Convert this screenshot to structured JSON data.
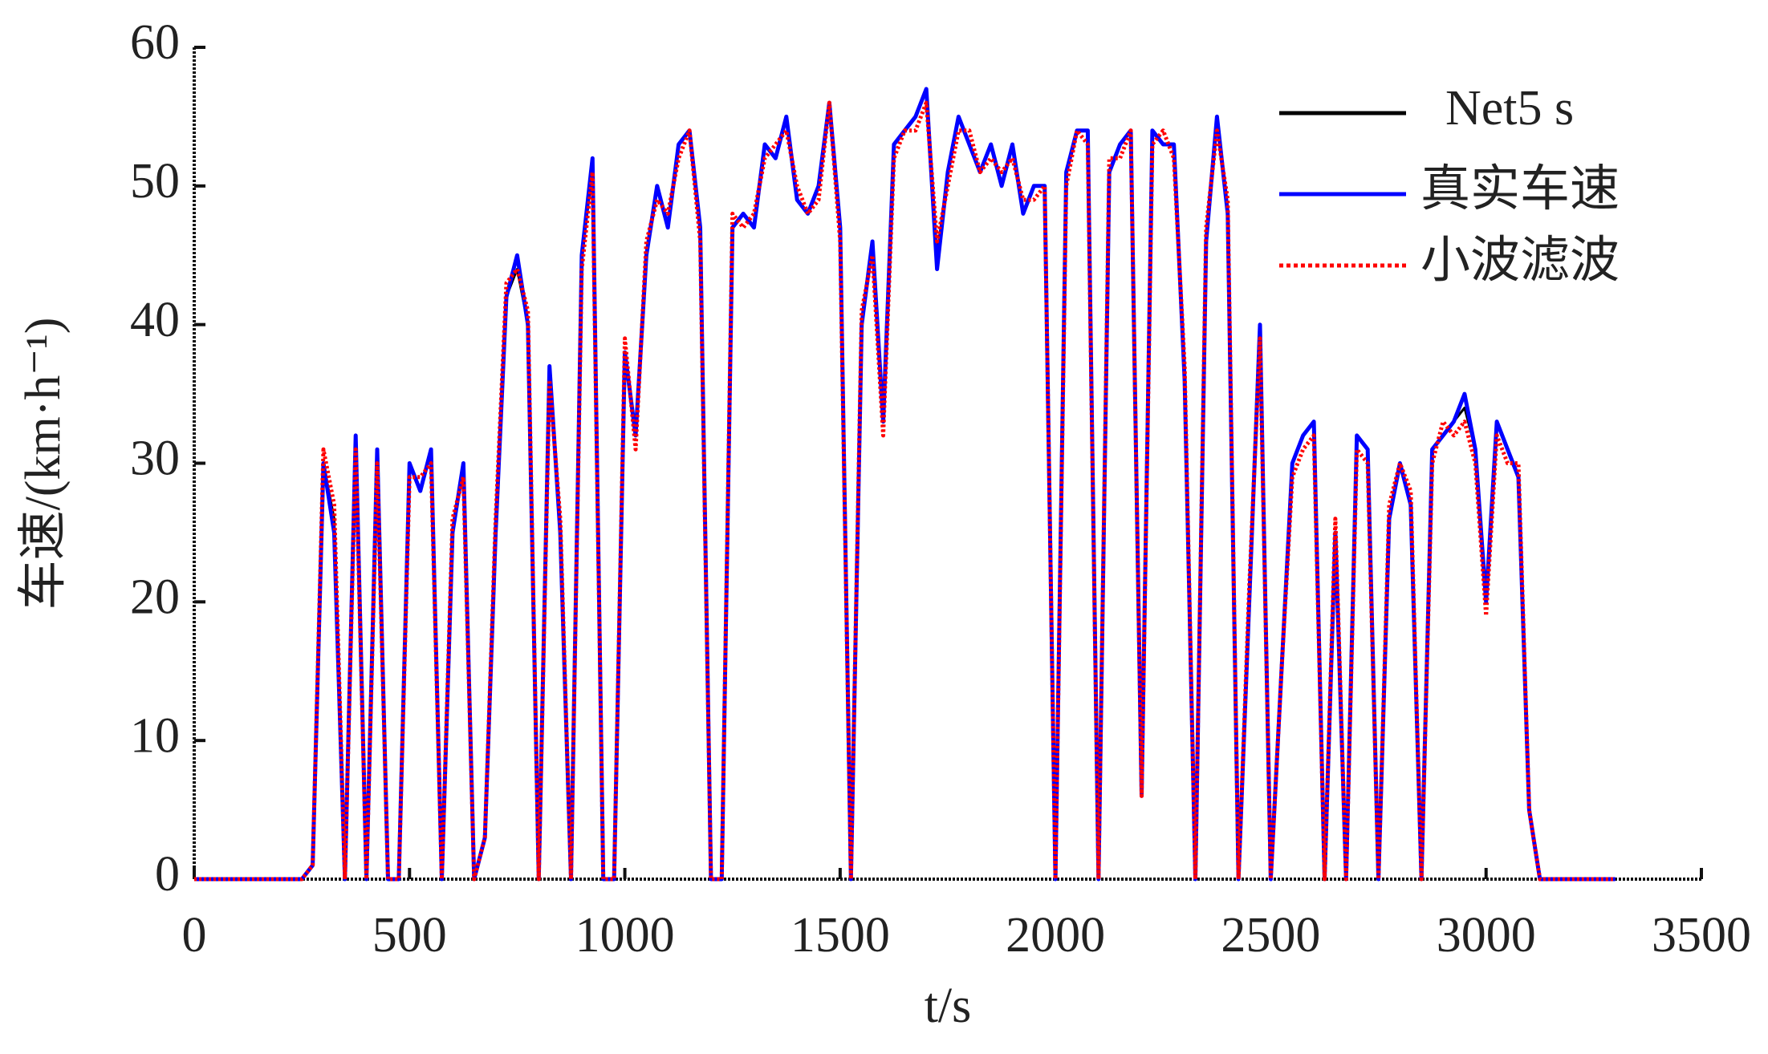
{
  "chart_data": {
    "type": "line",
    "x_label": "t/s",
    "y_label": "车速/(km·h⁻¹)",
    "x": [
      0,
      25,
      50,
      75,
      100,
      125,
      150,
      175,
      200,
      225,
      250,
      275,
      300,
      325,
      350,
      375,
      400,
      425,
      450,
      475,
      500,
      525,
      550,
      575,
      600,
      625,
      650,
      675,
      700,
      725,
      750,
      775,
      800,
      825,
      850,
      875,
      900,
      925,
      950,
      975,
      1000,
      1025,
      1050,
      1075,
      1100,
      1125,
      1150,
      1175,
      1200,
      1225,
      1250,
      1275,
      1300,
      1325,
      1350,
      1375,
      1400,
      1425,
      1450,
      1475,
      1500,
      1525,
      1550,
      1575,
      1600,
      1625,
      1650,
      1675,
      1700,
      1725,
      1750,
      1775,
      1800,
      1825,
      1850,
      1875,
      1900,
      1925,
      1950,
      1975,
      2000,
      2025,
      2050,
      2075,
      2100,
      2125,
      2150,
      2175,
      2200,
      2225,
      2250,
      2275,
      2300,
      2325,
      2350,
      2375,
      2400,
      2425,
      2450,
      2475,
      2500,
      2525,
      2550,
      2575,
      2600,
      2625,
      2650,
      2675,
      2700,
      2725,
      2750,
      2775,
      2800,
      2825,
      2850,
      2875,
      2900,
      2925,
      2950,
      2975,
      3000,
      3025,
      3050,
      3075,
      3100,
      3125,
      3150,
      3175,
      3200,
      3225,
      3250,
      3275,
      3300
    ],
    "series": [
      {
        "name": "Net5 s",
        "color": "#000000",
        "style": "solid",
        "values": [
          0,
          0,
          0,
          0,
          0,
          0,
          0,
          0,
          0,
          0,
          0,
          1,
          30,
          26,
          0,
          32,
          0,
          31,
          0,
          0,
          30,
          28,
          31,
          0,
          25,
          30,
          0,
          3,
          25,
          42,
          44,
          40,
          0,
          37,
          25,
          0,
          45,
          51,
          0,
          0,
          38,
          32,
          45,
          50,
          47,
          53,
          54,
          47,
          0,
          0,
          47,
          48,
          47,
          53,
          52,
          55,
          49,
          48,
          50,
          56,
          47,
          0,
          40,
          46,
          33,
          53,
          54,
          55,
          57,
          45,
          51,
          55,
          53,
          51,
          53,
          50,
          53,
          48,
          50,
          50,
          0,
          51,
          54,
          54,
          0,
          51,
          53,
          54,
          6,
          54,
          53,
          53,
          36,
          0,
          46,
          55,
          48,
          0,
          20,
          39,
          0,
          15,
          30,
          32,
          33,
          0,
          25,
          0,
          32,
          31,
          0,
          26,
          30,
          27,
          0,
          31,
          32,
          33,
          34,
          31,
          20,
          33,
          31,
          29,
          5,
          0,
          0,
          0,
          0,
          0,
          0,
          0,
          0
        ]
      },
      {
        "name": "真实车速",
        "color": "#0000ff",
        "style": "solid",
        "values": [
          0,
          0,
          0,
          0,
          0,
          0,
          0,
          0,
          0,
          0,
          0,
          1,
          30,
          25,
          0,
          32,
          0,
          31,
          0,
          0,
          30,
          28,
          31,
          0,
          25,
          30,
          0,
          3,
          25,
          42,
          45,
          40,
          0,
          37,
          25,
          0,
          45,
          52,
          0,
          0,
          38,
          32,
          45,
          50,
          47,
          53,
          54,
          47,
          0,
          0,
          47,
          48,
          47,
          53,
          52,
          55,
          49,
          48,
          50,
          56,
          47,
          0,
          40,
          46,
          33,
          53,
          54,
          55,
          57,
          44,
          51,
          55,
          53,
          51,
          53,
          50,
          53,
          48,
          50,
          50,
          0,
          51,
          54,
          54,
          0,
          51,
          53,
          54,
          6,
          54,
          53,
          53,
          36,
          0,
          46,
          55,
          48,
          0,
          20,
          40,
          0,
          15,
          30,
          32,
          33,
          0,
          25,
          0,
          32,
          31,
          0,
          26,
          30,
          27,
          0,
          31,
          32,
          33,
          35,
          31,
          20,
          33,
          31,
          29,
          5,
          0,
          0,
          0,
          0,
          0,
          0,
          0,
          0
        ]
      },
      {
        "name": "小波滤波",
        "color": "#ff0000",
        "style": "dotted",
        "values": [
          0,
          0,
          0,
          0,
          0,
          0,
          0,
          0,
          0,
          0,
          0,
          1,
          31,
          27,
          0,
          31,
          0,
          30,
          0,
          0,
          29,
          29,
          30,
          0,
          26,
          29,
          0,
          3,
          26,
          43,
          44,
          41,
          0,
          36,
          26,
          0,
          44,
          51,
          0,
          0,
          39,
          31,
          46,
          49,
          48,
          52,
          54,
          46,
          0,
          0,
          48,
          47,
          48,
          52,
          53,
          54,
          50,
          48,
          49,
          56,
          46,
          0,
          41,
          45,
          32,
          52,
          54,
          54,
          56,
          46,
          50,
          54,
          54,
          51,
          52,
          51,
          52,
          49,
          49,
          50,
          0,
          50,
          54,
          53,
          0,
          52,
          52,
          54,
          6,
          53,
          54,
          52,
          37,
          0,
          47,
          54,
          49,
          0,
          21,
          39,
          0,
          15,
          29,
          31,
          32,
          0,
          26,
          0,
          31,
          30,
          0,
          27,
          30,
          28,
          0,
          30,
          33,
          32,
          33,
          30,
          19,
          32,
          30,
          30,
          5,
          0,
          0,
          0,
          0,
          0,
          0,
          0,
          0
        ]
      }
    ],
    "xlim": [
      0,
      3500
    ],
    "ylim": [
      0,
      60
    ],
    "xticks": [
      0,
      500,
      1000,
      1500,
      2000,
      2500,
      3000,
      3500
    ],
    "yticks": [
      0,
      10,
      20,
      30,
      40,
      50,
      60
    ],
    "legend": "upper-right"
  }
}
